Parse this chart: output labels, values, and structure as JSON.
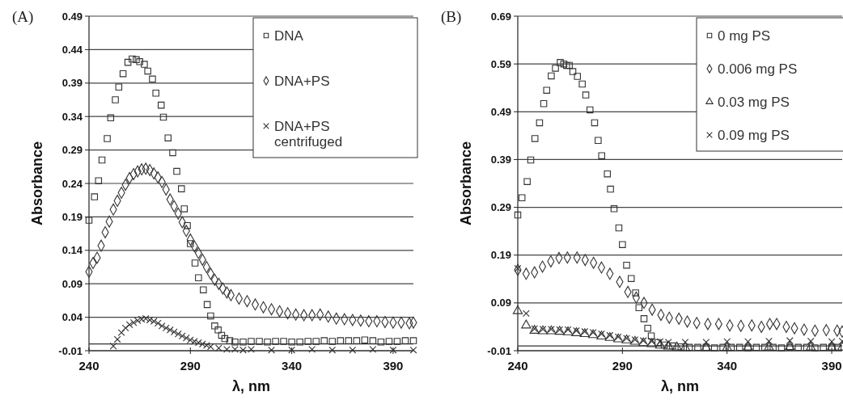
{
  "chart_data": [
    {
      "type": "scatter",
      "title": "(A)",
      "xlabel": "λ, nm",
      "ylabel": "Absorbance",
      "xlim": [
        240,
        400
      ],
      "xticks": [
        240,
        290,
        340,
        390
      ],
      "ylim": [
        -0.01,
        0.49
      ],
      "yticks": [
        -0.01,
        0.04,
        0.09,
        0.14,
        0.19,
        0.24,
        0.29,
        0.34,
        0.39,
        0.44,
        0.49
      ],
      "grid": "y",
      "legend": "top right",
      "ref_lines": [
        {
          "axis": "y",
          "value": 0,
          "label": null
        }
      ],
      "series": [
        {
          "name": "DNA",
          "color": "#333333",
          "marker": "square",
          "x": [
            240,
            242.7,
            244.7,
            246.4,
            249,
            250.7,
            253,
            254.7,
            256.8,
            259.2,
            261.3,
            263.3,
            265,
            267.3,
            269,
            271.3,
            273,
            275.6,
            276.7,
            279,
            281.3,
            283.3,
            285.6,
            287,
            288.5,
            290,
            292.3,
            294,
            296.4,
            298.3,
            300,
            302,
            303.7,
            305.4,
            307,
            309.4,
            312,
            316,
            320,
            324,
            328,
            332,
            336,
            340,
            344,
            348,
            352,
            356,
            360,
            364,
            368,
            372,
            376,
            380,
            384,
            388,
            392,
            396,
            400
          ],
          "values": [
            0.185,
            0.22,
            0.244,
            0.275,
            0.307,
            0.338,
            0.365,
            0.384,
            0.404,
            0.421,
            0.426,
            0.425,
            0.422,
            0.418,
            0.408,
            0.396,
            0.375,
            0.357,
            0.339,
            0.308,
            0.286,
            0.258,
            0.232,
            0.202,
            0.177,
            0.15,
            0.121,
            0.099,
            0.081,
            0.059,
            0.042,
            0.027,
            0.021,
            0.013,
            0.008,
            0.005,
            0.003,
            0.003,
            0.004,
            0.004,
            0.003,
            0.004,
            0.004,
            0.003,
            0.003,
            0.004,
            0.004,
            0.005,
            0.004,
            0.005,
            0.005,
            0.005,
            0.006,
            0.005,
            0.003,
            0.004,
            0.004,
            0.005,
            0.005
          ]
        },
        {
          "name": "DNA+PS",
          "color": "#333333",
          "marker": "diamond",
          "x": [
            240,
            242,
            244,
            246,
            248,
            250,
            252,
            254,
            256,
            258,
            260,
            262,
            264,
            266,
            268,
            270,
            272,
            274,
            276,
            278,
            280,
            282,
            284,
            286,
            288,
            290,
            292,
            294,
            296,
            298,
            300,
            302,
            304,
            306,
            308,
            310,
            314,
            318,
            322,
            326,
            330,
            334,
            338,
            342,
            346,
            350,
            354,
            358,
            362,
            366,
            370,
            374,
            378,
            382,
            386,
            390,
            394,
            398,
            400
          ],
          "values": [
            0.108,
            0.121,
            0.129,
            0.147,
            0.167,
            0.183,
            0.201,
            0.214,
            0.226,
            0.238,
            0.248,
            0.254,
            0.258,
            0.261,
            0.262,
            0.26,
            0.255,
            0.249,
            0.242,
            0.231,
            0.216,
            0.206,
            0.195,
            0.182,
            0.169,
            0.156,
            0.146,
            0.136,
            0.126,
            0.115,
            0.105,
            0.096,
            0.09,
            0.083,
            0.077,
            0.073,
            0.068,
            0.064,
            0.059,
            0.055,
            0.052,
            0.049,
            0.046,
            0.044,
            0.043,
            0.043,
            0.044,
            0.041,
            0.038,
            0.037,
            0.036,
            0.035,
            0.034,
            0.034,
            0.033,
            0.032,
            0.032,
            0.031,
            0.032
          ]
        },
        {
          "name": "DNA+PS centrifuged",
          "color": "#333333",
          "marker": "cross",
          "x": [
            252,
            254,
            256,
            258,
            260,
            262,
            264,
            266,
            268,
            270,
            272,
            274,
            276,
            278,
            280,
            282,
            284,
            286,
            288,
            290,
            292,
            294,
            296,
            298,
            300,
            304,
            308,
            312,
            316,
            320,
            330,
            340,
            350,
            360,
            370,
            380,
            390,
            400
          ],
          "values": [
            -0.003,
            0.007,
            0.017,
            0.024,
            0.029,
            0.032,
            0.035,
            0.037,
            0.038,
            0.036,
            0.034,
            0.031,
            0.027,
            0.024,
            0.021,
            0.018,
            0.015,
            0.012,
            0.009,
            0.006,
            0.004,
            0.002,
            0,
            -0.002,
            -0.004,
            -0.006,
            -0.008,
            -0.008,
            -0.009,
            -0.008,
            -0.009,
            -0.009,
            -0.008,
            -0.009,
            -0.009,
            -0.008,
            -0.009,
            -0.009
          ]
        }
      ]
    },
    {
      "type": "scatter",
      "title": "(B)",
      "xlabel": "λ, nm",
      "ylabel": "Absorbance",
      "xlim": [
        240,
        395
      ],
      "xticks": [
        240,
        290,
        340,
        390
      ],
      "ylim": [
        -0.01,
        0.69
      ],
      "yticks": [
        -0.01,
        0.09,
        0.19,
        0.29,
        0.39,
        0.49,
        0.59,
        0.69
      ],
      "grid": "y",
      "legend": "top right",
      "ref_lines": [
        {
          "axis": "y",
          "value": 0,
          "label": null
        }
      ],
      "series": [
        {
          "name": "0 mg PS",
          "color": "#333333",
          "marker": "square",
          "x": [
            240,
            242,
            244.5,
            246.2,
            248.2,
            250.4,
            252.4,
            253.8,
            256,
            258,
            260.3,
            262,
            263.3,
            264.6,
            266.3,
            268.5,
            270.8,
            272.5,
            274.5,
            276.7,
            278.4,
            280.1,
            282.8,
            284.3,
            286,
            288.3,
            290,
            292,
            294.2,
            296.3,
            297.9,
            300.3,
            302.1,
            303.8,
            307,
            310,
            314,
            318,
            322,
            326,
            330,
            334,
            338,
            342,
            346,
            350,
            354,
            358,
            362,
            366,
            370,
            374,
            378,
            382,
            386,
            390,
            393
          ],
          "values": [
            0.274,
            0.31,
            0.344,
            0.389,
            0.434,
            0.467,
            0.507,
            0.535,
            0.565,
            0.581,
            0.593,
            0.59,
            0.587,
            0.587,
            0.574,
            0.564,
            0.548,
            0.525,
            0.494,
            0.467,
            0.43,
            0.398,
            0.36,
            0.328,
            0.287,
            0.247,
            0.212,
            0.169,
            0.141,
            0.111,
            0.08,
            0.057,
            0.037,
            0.021,
            0.007,
            0.002,
            0,
            -0.002,
            -0.003,
            -0.003,
            -0.003,
            -0.004,
            -0.003,
            -0.003,
            -0.003,
            -0.004,
            -0.003,
            -0.003,
            -0.003,
            -0.004,
            -0.003,
            -0.003,
            -0.003,
            -0.004,
            -0.003,
            -0.003,
            -0.003
          ]
        },
        {
          "name": "0.006 mg PS",
          "color": "#333333",
          "marker": "diamond",
          "x": [
            240,
            244,
            248,
            251.8,
            255.8,
            259.7,
            263.7,
            268.3,
            272.2,
            276.2,
            280,
            284,
            288.7,
            292.6,
            296.6,
            300.3,
            304.2,
            308.4,
            312.4,
            317,
            321,
            325.5,
            330.8,
            336,
            341.3,
            346.6,
            351.8,
            356.4,
            360.4,
            363.7,
            368.3,
            372.2,
            376.8,
            382,
            387.4,
            392.6,
            395
          ],
          "values": [
            0.159,
            0.151,
            0.154,
            0.166,
            0.177,
            0.184,
            0.185,
            0.185,
            0.18,
            0.174,
            0.164,
            0.151,
            0.134,
            0.113,
            0.101,
            0.09,
            0.076,
            0.065,
            0.059,
            0.057,
            0.051,
            0.048,
            0.046,
            0.046,
            0.043,
            0.042,
            0.043,
            0.04,
            0.046,
            0.046,
            0.04,
            0.037,
            0.034,
            0.032,
            0.033,
            0.032,
            0.03
          ]
        },
        {
          "name": "0.03 mg PS",
          "color": "#333333",
          "marker": "triangle",
          "x": [
            240,
            244,
            248,
            252,
            256,
            260,
            264,
            268,
            272,
            276,
            280,
            284,
            288,
            292,
            296,
            300,
            304,
            308,
            312,
            316,
            320,
            330,
            340,
            350,
            360,
            370,
            380,
            390,
            395
          ],
          "values": [
            0.073,
            0.043,
            0.032,
            0.031,
            0.031,
            0.03,
            0.029,
            0.027,
            0.025,
            0.023,
            0.02,
            0.017,
            0.014,
            0.012,
            0.009,
            0.006,
            0.004,
            0.001,
            -0.001,
            -0.003,
            -0.004,
            -0.004,
            -0.004,
            -0.003,
            -0.003,
            -0.002,
            -0.003,
            -0.003,
            -0.003
          ]
        },
        {
          "name": "0.09 mg PS",
          "color": "#333333",
          "marker": "cross",
          "x": [
            240,
            244,
            248,
            252,
            256,
            260,
            264,
            268,
            272,
            276,
            280,
            284,
            288,
            292,
            296,
            300,
            304,
            308,
            312,
            320,
            330,
            340,
            350,
            360,
            370,
            380,
            390,
            395
          ],
          "values": [
            0.162,
            0.068,
            0.036,
            0.035,
            0.035,
            0.034,
            0.034,
            0.032,
            0.03,
            0.028,
            0.025,
            0.022,
            0.019,
            0.016,
            0.013,
            0.011,
            0.01,
            0.009,
            0.008,
            0.008,
            0.008,
            0.009,
            0.009,
            0.01,
            0.011,
            0.01,
            0.009,
            0.01
          ]
        }
      ]
    }
  ]
}
